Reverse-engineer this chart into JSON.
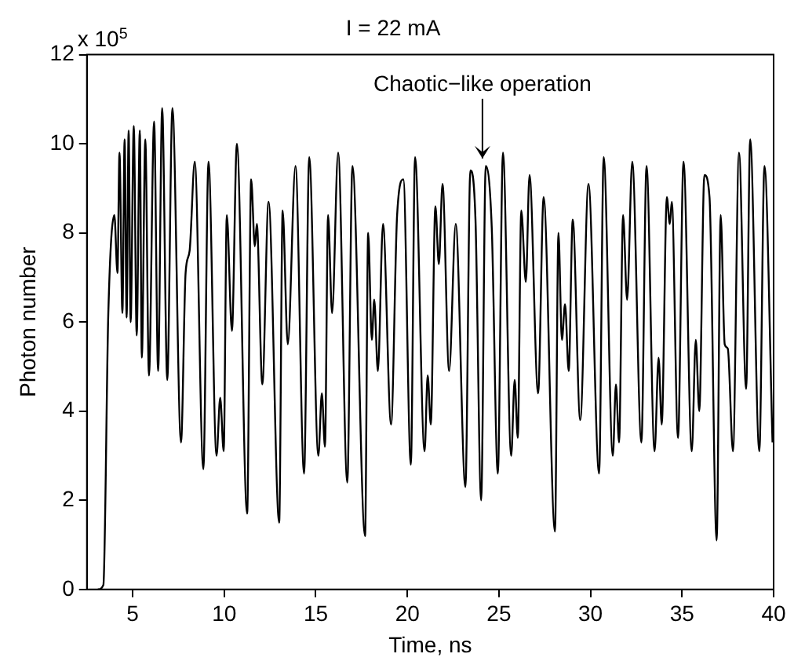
{
  "chart_data": {
    "type": "line",
    "title": "I = 22 mA",
    "xlabel": "Time, ns",
    "ylabel": "Photon number",
    "annotations": [
      "x 10$^{5}$",
      {
        "text": "Chaotic−like operation",
        "x": 24.1,
        "y": 9.6
      }
    ],
    "xlim": [
      2.5,
      40
    ],
    "xticks": [
      5,
      10,
      15,
      20,
      25,
      30,
      35,
      40
    ],
    "ylim": [
      0,
      12
    ],
    "yticks": [
      0,
      2,
      4,
      6,
      8,
      10,
      12
    ],
    "grid": false,
    "marker": "none",
    "line_style": "solid",
    "series": [
      {
        "color": "#000000",
        "x": [
          3.1,
          3.4,
          3.67,
          4.0,
          4.17,
          4.28,
          4.44,
          4.56,
          4.67,
          4.78,
          4.89,
          5.06,
          5.22,
          5.39,
          5.5,
          5.69,
          5.89,
          6.17,
          6.39,
          6.61,
          6.89,
          7.17,
          7.64,
          7.89,
          8.11,
          8.39,
          8.86,
          9.14,
          9.58,
          9.78,
          9.97,
          10.14,
          10.42,
          10.69,
          11.25,
          11.47,
          11.67,
          11.78,
          12.08,
          12.42,
          13.0,
          13.19,
          13.47,
          13.89,
          14.36,
          14.64,
          15.14,
          15.33,
          15.5,
          15.67,
          15.89,
          16.22,
          16.72,
          17.0,
          17.69,
          17.86,
          18.06,
          18.19,
          18.39,
          18.67,
          19.11,
          19.44,
          19.78,
          20.19,
          20.42,
          20.94,
          21.11,
          21.28,
          21.53,
          21.72,
          21.92,
          22.28,
          22.64,
          23.17,
          23.44,
          23.72,
          24.03,
          24.28,
          24.61,
          24.94,
          25.22,
          25.67,
          25.86,
          26.03,
          26.22,
          26.47,
          26.67,
          27.14,
          27.44,
          28.06,
          28.25,
          28.44,
          28.61,
          28.81,
          29.03,
          29.44,
          29.89,
          30.47,
          30.72,
          31.22,
          31.39,
          31.56,
          31.78,
          32.0,
          32.28,
          32.78,
          33.06,
          33.5,
          33.72,
          33.89,
          34.17,
          34.33,
          34.44,
          34.78,
          35.08,
          35.53,
          35.75,
          35.94,
          36.22,
          36.5,
          36.89,
          37.11,
          37.33,
          37.5,
          37.78,
          38.11,
          38.5,
          38.72,
          39.22,
          39.5,
          39.94
        ],
        "values": [
          0,
          0.1,
          6.2,
          8.4,
          7.1,
          9.8,
          6.2,
          10.1,
          6.1,
          10.3,
          6.0,
          10.4,
          5.7,
          10.3,
          5.2,
          10.1,
          4.8,
          10.5,
          4.9,
          10.8,
          4.7,
          10.8,
          3.3,
          7.1,
          7.6,
          9.6,
          2.7,
          9.6,
          3.0,
          4.3,
          3.1,
          8.4,
          5.8,
          10.0,
          1.7,
          9.2,
          7.7,
          8.2,
          4.6,
          8.7,
          1.5,
          8.5,
          5.5,
          9.5,
          2.6,
          9.7,
          3.0,
          4.4,
          3.2,
          8.4,
          6.2,
          9.8,
          2.4,
          9.5,
          1.2,
          8.0,
          5.6,
          6.5,
          4.9,
          8.2,
          3.7,
          8.4,
          9.2,
          2.8,
          9.7,
          3.1,
          4.8,
          3.7,
          8.6,
          7.3,
          9.1,
          4.9,
          8.2,
          2.3,
          9.4,
          8.3,
          2.0,
          9.5,
          8.1,
          2.6,
          9.8,
          3.0,
          4.7,
          3.4,
          8.5,
          6.9,
          9.3,
          4.4,
          8.8,
          1.3,
          8.0,
          5.6,
          6.4,
          4.9,
          8.3,
          3.8,
          9.1,
          2.6,
          9.7,
          3.0,
          4.6,
          3.3,
          8.4,
          6.5,
          9.6,
          3.3,
          9.5,
          3.1,
          5.2,
          3.7,
          8.8,
          8.2,
          8.7,
          3.4,
          9.6,
          3.1,
          5.6,
          4.0,
          9.3,
          8.8,
          1.1,
          8.4,
          5.5,
          5.4,
          3.1,
          9.8,
          4.5,
          10.1,
          3.1,
          9.5,
          3.3
        ]
      }
    ]
  }
}
